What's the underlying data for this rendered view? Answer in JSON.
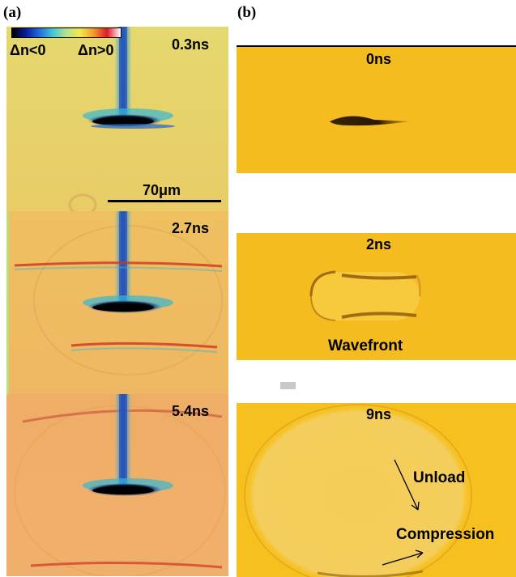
{
  "panel_a": {
    "label": "(a)",
    "colorbar": {
      "neg_label": "Δn<0",
      "pos_label": "Δn>0",
      "gradient": [
        "#000000",
        "#0a1a9c",
        "#1f6de0",
        "#41c8d8",
        "#b8e08a",
        "#f4e84a",
        "#f59b2a",
        "#e0182a",
        "#ffffff"
      ]
    },
    "scalebar_label": "70μm",
    "frames": [
      {
        "time": "0.3ns"
      },
      {
        "time": "2.7ns"
      },
      {
        "time": "5.4ns"
      }
    ]
  },
  "panel_b": {
    "label": "(b)",
    "frames": [
      {
        "time": "0ns"
      },
      {
        "time": "2ns",
        "annotation": "Wavefront"
      },
      {
        "time": "9ns",
        "annotations": [
          "Unload",
          "Compression"
        ]
      }
    ]
  },
  "colors": {
    "sim_background": "#f6bd1e",
    "exp_background_top": "#e7d36a",
    "exp_background_mid": "#edb560",
    "exp_background_bottom": "#f0b068"
  }
}
